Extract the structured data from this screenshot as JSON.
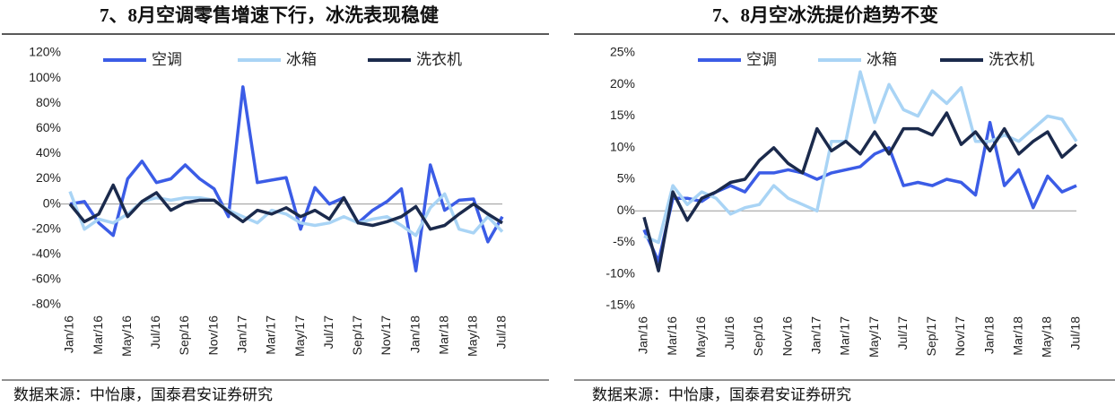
{
  "chart_data": [
    {
      "type": "line",
      "title": "7、8月空调零售增速下行，冰洗表现稳健",
      "source": "数据来源：中怡康，国泰君安证券研究",
      "categories": [
        "Jan/16",
        null,
        "Mar/16",
        null,
        "May/16",
        null,
        "Jul/16",
        null,
        "Sep/16",
        null,
        "Nov/16",
        null,
        "Jan/17",
        null,
        "Mar/17",
        null,
        "May/17",
        null,
        "Jul/17",
        null,
        "Sep/17",
        null,
        "Nov/17",
        null,
        "Jan/18",
        null,
        "Mar/18",
        null,
        "May/18",
        null,
        "Jul/18"
      ],
      "ylim": [
        -80,
        120
      ],
      "yticks": [
        {
          "value": -80,
          "label": "-80%"
        },
        {
          "value": -60,
          "label": "-60%"
        },
        {
          "value": -40,
          "label": "-40%"
        },
        {
          "value": -20,
          "label": "-20%"
        },
        {
          "value": 0,
          "label": "0%"
        },
        {
          "value": 20,
          "label": "20%"
        },
        {
          "value": 40,
          "label": "40%"
        },
        {
          "value": 60,
          "label": "60%"
        },
        {
          "value": 80,
          "label": "80%"
        },
        {
          "value": 100,
          "label": "100%"
        },
        {
          "value": 120,
          "label": "120%"
        }
      ],
      "legend": "top",
      "series": [
        {
          "name": "空调",
          "color": "#3b5ce6",
          "values": [
            0,
            2,
            -15,
            -25,
            20,
            34,
            17,
            20,
            31,
            20,
            12,
            -10,
            93,
            17,
            19,
            21,
            -20,
            13,
            0,
            5,
            -15,
            -5,
            2,
            12,
            -53,
            31,
            -5,
            3,
            4,
            -30,
            -10
          ]
        },
        {
          "name": "冰箱",
          "color": "#a9d4f5",
          "values": [
            10,
            -20,
            -12,
            -15,
            -8,
            2,
            5,
            3,
            5,
            5,
            3,
            -5,
            -10,
            -15,
            -5,
            -8,
            -15,
            -17,
            -15,
            -10,
            -15,
            -12,
            -10,
            -17,
            -25,
            -3,
            8,
            -20,
            -23,
            -10,
            -22
          ]
        },
        {
          "name": "洗衣机",
          "color": "#1b2a4c",
          "values": [
            0,
            -14,
            -8,
            15,
            -10,
            2,
            9,
            -5,
            1,
            3,
            3,
            -6,
            -14,
            -5,
            -8,
            -3,
            -10,
            -5,
            -12,
            5,
            -15,
            -17,
            -14,
            -10,
            -2,
            -20,
            -17,
            -8,
            0,
            -8,
            -15
          ]
        }
      ]
    },
    {
      "type": "line",
      "title": "7、8月空冰洗提价趋势不变",
      "source": "数据来源：中怡康，国泰君安证券研究",
      "categories": [
        "Jan/16",
        null,
        "Mar/16",
        null,
        "May/16",
        null,
        "Jul/16",
        null,
        "Sep/16",
        null,
        "Nov/16",
        null,
        "Jan/17",
        null,
        "Mar/17",
        null,
        "May/17",
        null,
        "Jul/17",
        null,
        "Sep/17",
        null,
        "Nov/17",
        null,
        "Jan/18",
        null,
        "Mar/18",
        null,
        "May/18",
        null,
        "Jul/18"
      ],
      "ylim": [
        -15,
        25
      ],
      "yticks": [
        {
          "value": -15,
          "label": "-15%"
        },
        {
          "value": -10,
          "label": "-10%"
        },
        {
          "value": -5,
          "label": "-5%"
        },
        {
          "value": 0,
          "label": "0%"
        },
        {
          "value": 5,
          "label": "5%"
        },
        {
          "value": 10,
          "label": "10%"
        },
        {
          "value": 15,
          "label": "15%"
        },
        {
          "value": 20,
          "label": "20%"
        },
        {
          "value": 25,
          "label": "25%"
        }
      ],
      "legend": "top",
      "series": [
        {
          "name": "空调",
          "color": "#3b5ce6",
          "values": [
            -3,
            -8,
            2,
            2,
            1.5,
            3,
            4,
            3,
            6,
            6,
            6.5,
            6,
            5,
            6,
            6.5,
            7,
            9,
            10,
            4,
            4.5,
            4,
            5,
            4.5,
            2.5,
            14,
            4,
            6.5,
            0.5,
            5.5,
            3,
            4
          ]
        },
        {
          "name": "冰箱",
          "color": "#a9d4f5",
          "values": [
            -4,
            -5,
            4,
            1,
            3,
            2,
            -0.5,
            0.5,
            1,
            4,
            2,
            1,
            0,
            11,
            11,
            22,
            14,
            20,
            16,
            15,
            19,
            17,
            19.5,
            11,
            11,
            12,
            11,
            13,
            15,
            14.5,
            11
          ]
        },
        {
          "name": "洗衣机",
          "color": "#1b2a4c",
          "values": [
            -1,
            -9.5,
            3,
            -1.5,
            2,
            3,
            4.5,
            5,
            8,
            10,
            7.5,
            6,
            13,
            9.5,
            11,
            9,
            12.5,
            9,
            13,
            13,
            12,
            15.5,
            10.5,
            12.5,
            9.5,
            13,
            9,
            11,
            12.5,
            8.5,
            10.5
          ]
        }
      ]
    }
  ]
}
